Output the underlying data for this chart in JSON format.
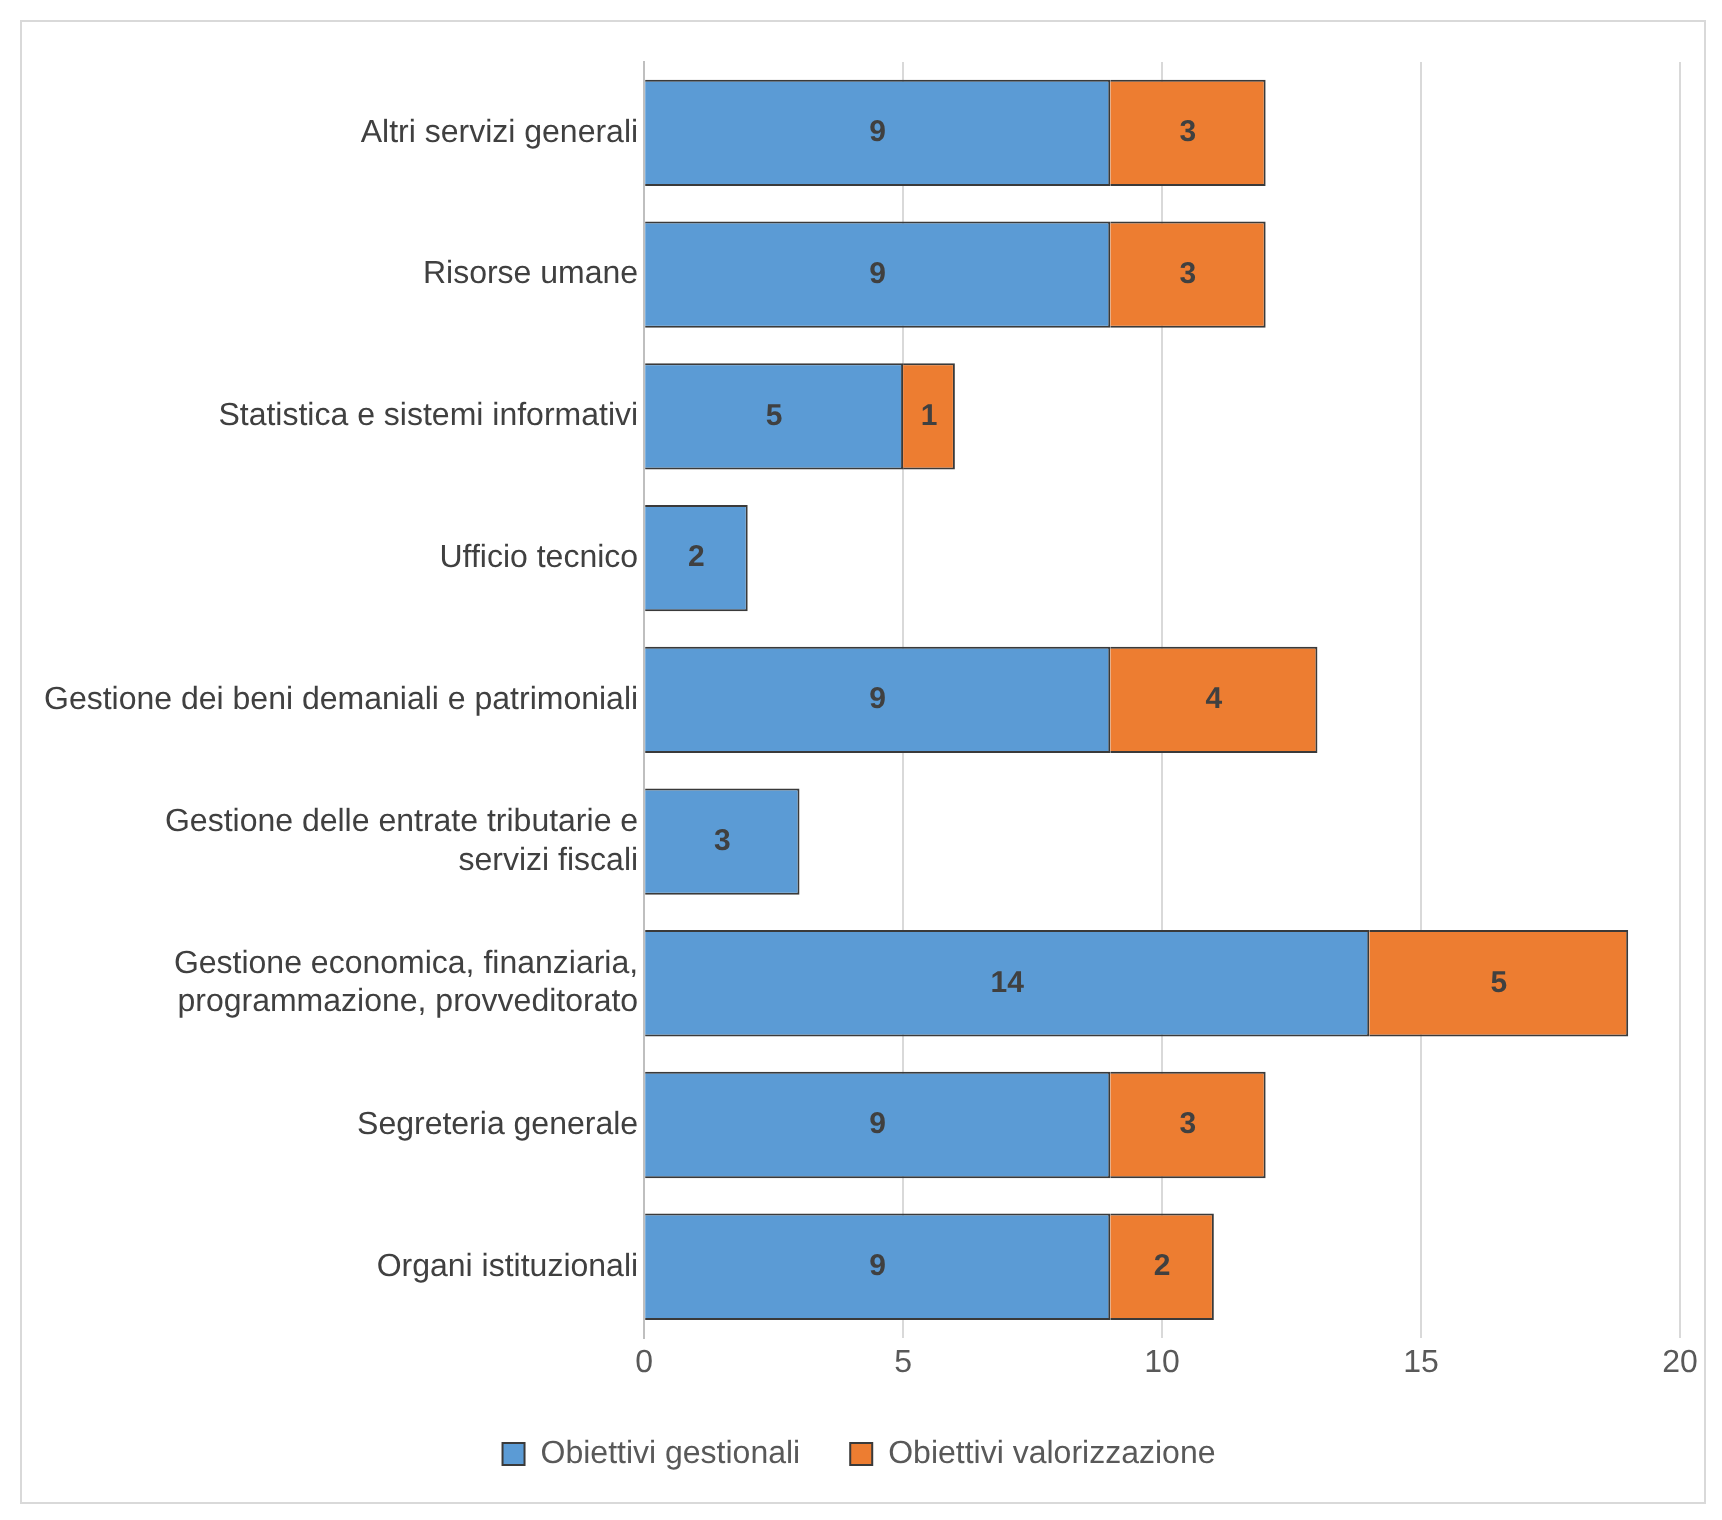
{
  "chart_data": {
    "type": "bar",
    "orientation": "horizontal",
    "stacked": true,
    "categories": [
      "Altri servizi generali",
      "Risorse umane",
      "Statistica e sistemi informativi",
      "Ufficio tecnico",
      "Gestione dei beni demaniali e patrimoniali",
      "Gestione delle entrate tributarie e servizi fiscali",
      "Gestione economica, finanziaria, programmazione, provveditorato",
      "Segreteria generale",
      "Organi istituzionali"
    ],
    "series": [
      {
        "name": "Obiettivi gestionali",
        "color": "#5b9bd5",
        "values": [
          9,
          9,
          5,
          2,
          9,
          3,
          14,
          9,
          9
        ]
      },
      {
        "name": "Obiettivi valorizzazione",
        "color": "#ed7d31",
        "values": [
          3,
          3,
          1,
          null,
          4,
          null,
          5,
          3,
          2
        ]
      }
    ],
    "xlim": [
      0,
      20
    ],
    "xticks": [
      0,
      5,
      10,
      15,
      20
    ],
    "grid": "x",
    "legend": "bottom",
    "data_labels": true
  }
}
